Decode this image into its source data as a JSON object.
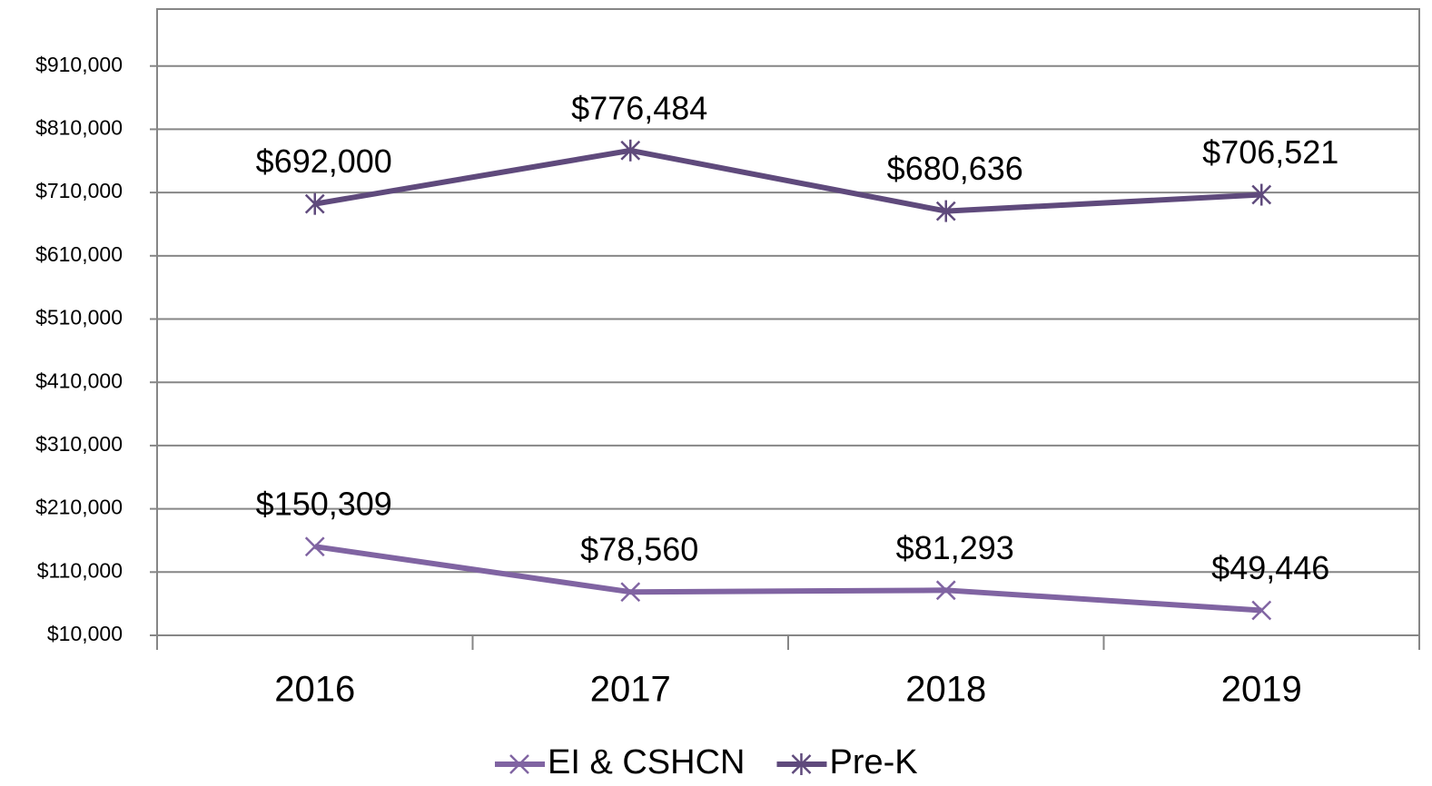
{
  "chart_data": {
    "type": "line",
    "categories": [
      "2016",
      "2017",
      "2018",
      "2019"
    ],
    "series": [
      {
        "name": "EI & CSHCN",
        "color": "#8064a2",
        "marker": "x",
        "values": [
          150309,
          78560,
          81293,
          49446
        ],
        "value_labels": [
          "$150,309",
          "$78,560",
          "$81,293",
          "$49,446"
        ]
      },
      {
        "name": "Pre-K",
        "color": "#5f4a7c",
        "marker": "star",
        "values": [
          692000,
          776484,
          680636,
          706521
        ],
        "value_labels": [
          "$692,000",
          "$776,484",
          "$680,636",
          "$706,521"
        ]
      }
    ],
    "ylim": [
      10000,
      1000000
    ],
    "yticks": [
      {
        "value": 10000,
        "label": "$10,000"
      },
      {
        "value": 110000,
        "label": "$110,000"
      },
      {
        "value": 210000,
        "label": "$210,000"
      },
      {
        "value": 310000,
        "label": "$310,000"
      },
      {
        "value": 410000,
        "label": "$410,000"
      },
      {
        "value": 510000,
        "label": "$510,000"
      },
      {
        "value": 610000,
        "label": "$610,000"
      },
      {
        "value": 710000,
        "label": "$710,000"
      },
      {
        "value": 810000,
        "label": "$810,000"
      },
      {
        "value": 910000,
        "label": "$910,000"
      }
    ],
    "grid": true,
    "legend": "bottom"
  }
}
